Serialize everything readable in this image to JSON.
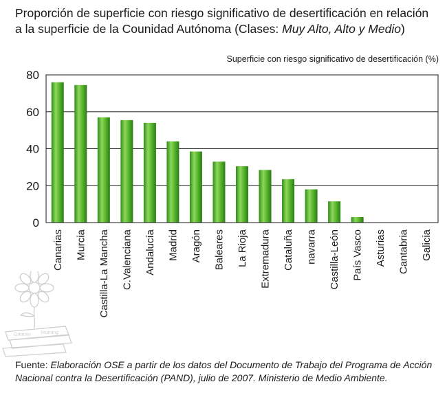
{
  "title": {
    "line1": "Proporción de superficie con riesgo significativo de desertificación en relación",
    "line2_normal": "a la superficie de la Counidad Autónoma (Clases: ",
    "line2_italic": "Muy Alto, Alto y Medio",
    "line2_end": ")"
  },
  "chart_data": {
    "type": "bar",
    "ylabel": "Superficie con riesgo significativo de desertificación (%)",
    "ylim": [
      0,
      80
    ],
    "yticks": [
      "0",
      "20",
      "40",
      "60",
      "80"
    ],
    "grid": true,
    "categories": [
      "Canarias",
      "Murcia",
      "Castilla-La Mancha",
      "C.Valenciana",
      "Andalucía",
      "Madrid",
      "Aragón",
      "Baleares",
      "La Rioja",
      "Extremadura",
      "Cataluña",
      "navarra",
      "Castilla-León",
      "País Vasco",
      "Asturias",
      "Cantabria",
      "Galicia"
    ],
    "values": [
      76,
      74.5,
      57,
      55.5,
      54,
      44,
      38.5,
      33,
      30.5,
      28.5,
      23.5,
      18,
      11.5,
      3,
      0,
      0,
      0
    ],
    "bar_color": "#4caf2a"
  },
  "source": {
    "label": "Fuente: ",
    "text": "Elaboración OSE a partir de los datos del Documento de Trabajo del Programa de Acción Nacional contra la Desertificación (PAND), julio de 2007. Ministerio de Medio Ambiente."
  },
  "logo": {
    "icon": "flower-on-books-watermark",
    "text1": "Greenin",
    "text2": "learning"
  }
}
